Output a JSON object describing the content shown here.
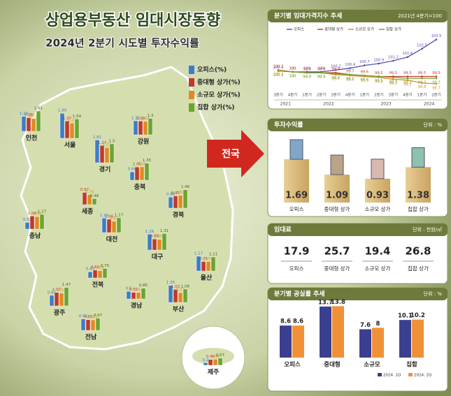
{
  "header": {
    "title": "상업용부동산 임대시장동향",
    "subtitle": "2024년 2분기 시도별 투자수익률"
  },
  "map": {
    "legend": [
      "오피스(%)",
      "중대형 상가(%)",
      "소규모 상가(%)",
      "집합 상가(%)"
    ],
    "national": "전국",
    "regions": [
      {
        "name": "인천",
        "values": [
          1.19,
          1.08,
          1.01,
          1.61
        ]
      },
      {
        "name": "서울",
        "values": [
          1.99,
          1.37,
          1.21,
          1.54
        ]
      },
      {
        "name": "강원",
        "values": [
          1.11,
          1.09,
          1.06,
          1.3
        ]
      },
      {
        "name": "경기",
        "values": [
          1.81,
          1.37,
          1.21,
          1.5
        ]
      },
      {
        "name": "충북",
        "values": [
          0.66,
          1.05,
          1.06,
          1.35
        ]
      },
      {
        "name": "세종",
        "values": [
          null,
          0.97,
          0.79,
          0.48
        ]
      },
      {
        "name": "경북",
        "values": [
          0.88,
          0.97,
          1.02,
          1.46
        ]
      },
      {
        "name": "충남",
        "values": [
          0.53,
          1.04,
          0.99,
          1.17
        ]
      },
      {
        "name": "대전",
        "values": [
          1.15,
          1.06,
          0.91,
          1.17
        ]
      },
      {
        "name": "대구",
        "values": [
          1.26,
          0.88,
          0.85,
          1.31
        ]
      },
      {
        "name": "울산",
        "values": [
          1.17,
          0.75,
          0.75,
          1.11
        ]
      },
      {
        "name": "전북",
        "values": [
          0.49,
          0.63,
          0.58,
          0.75
        ]
      },
      {
        "name": "광주",
        "values": [
          0.84,
          1.07,
          1.02,
          1.47
        ]
      },
      {
        "name": "경남",
        "values": [
          0.6,
          0.52,
          0.51,
          0.85
        ]
      },
      {
        "name": "부산",
        "values": [
          1.35,
          1.03,
          0.77,
          1.06
        ]
      },
      {
        "name": "전남",
        "values": [
          0.91,
          0.85,
          0.83,
          0.97
        ]
      },
      {
        "name": "제주",
        "values": [
          0.2,
          0.46,
          0.48,
          0.57
        ]
      }
    ]
  },
  "chart_data": [
    {
      "type": "line",
      "title": "분기별 임대가격지수 추세",
      "note": "2021년 4분기=100",
      "categories": [
        "3분기",
        "4분기",
        "1분기",
        "2분기",
        "3분기",
        "4분기",
        "1분기",
        "2분기",
        "3분기",
        "4분기",
        "1분기",
        "2분기"
      ],
      "years": [
        "2021",
        "2022",
        "2023",
        "2024"
      ],
      "ylim": [
        98.4,
        104
      ],
      "series": [
        {
          "name": "오피스",
          "color": "#5a4fb0",
          "values": [
            100.1,
            100.0,
            100.0,
            100.0,
            100.2,
            100.4,
            100.7,
            100.9,
            101.2,
            101.6,
            102.5,
            103.5
          ]
        },
        {
          "name": "중대형 상가",
          "color": "#c0392b",
          "values": [
            100.2,
            100.0,
            99.9,
            99.9,
            99.9,
            99.7,
            99.6,
            99.5,
            99.5,
            99.5,
            99.5,
            99.5
          ]
        },
        {
          "name": "소규모 상가",
          "color": "#e08a1e",
          "values": [
            100.2,
            100.0,
            99.9,
            99.9,
            99.7,
            99.6,
            99.5,
            99.4,
            99.2,
            99.1,
            98.8,
            98.7
          ]
        },
        {
          "name": "집합 상가",
          "color": "#6aa532",
          "values": [
            100.1,
            100.0,
            99.9,
            99.9,
            99.8,
            99.7,
            99.6,
            99.5,
            99.4,
            99.3,
            99.3,
            99.3
          ]
        }
      ]
    },
    {
      "type": "pedestal",
      "title": "투자수익률",
      "unit": "단위 : %",
      "categories": [
        "오피스",
        "중대형 상가",
        "소규모 상가",
        "집합 상가"
      ],
      "values": [
        1.69,
        1.09,
        0.93,
        1.38
      ]
    },
    {
      "type": "figures",
      "title": "임대료",
      "unit": "단위 : 천원/㎡",
      "categories": [
        "오피스",
        "중대형 상가",
        "소규모 상가",
        "집합 상가"
      ],
      "values": [
        17.9,
        25.7,
        19.4,
        26.8
      ]
    },
    {
      "type": "grouped_bar",
      "title": "분기별 공실률 추세",
      "unit": "단위 : %",
      "categories": [
        "오피스",
        "중대형",
        "소규모",
        "집합"
      ],
      "ylim": [
        0,
        15
      ],
      "series": [
        {
          "name": "2024. 1Q",
          "color": "#3b3f8f",
          "values": [
            8.6,
            13.7,
            7.6,
            10.1
          ]
        },
        {
          "name": "2024. 2Q",
          "color": "#f0913a",
          "values": [
            8.6,
            13.8,
            8.0,
            10.2
          ]
        }
      ]
    }
  ]
}
